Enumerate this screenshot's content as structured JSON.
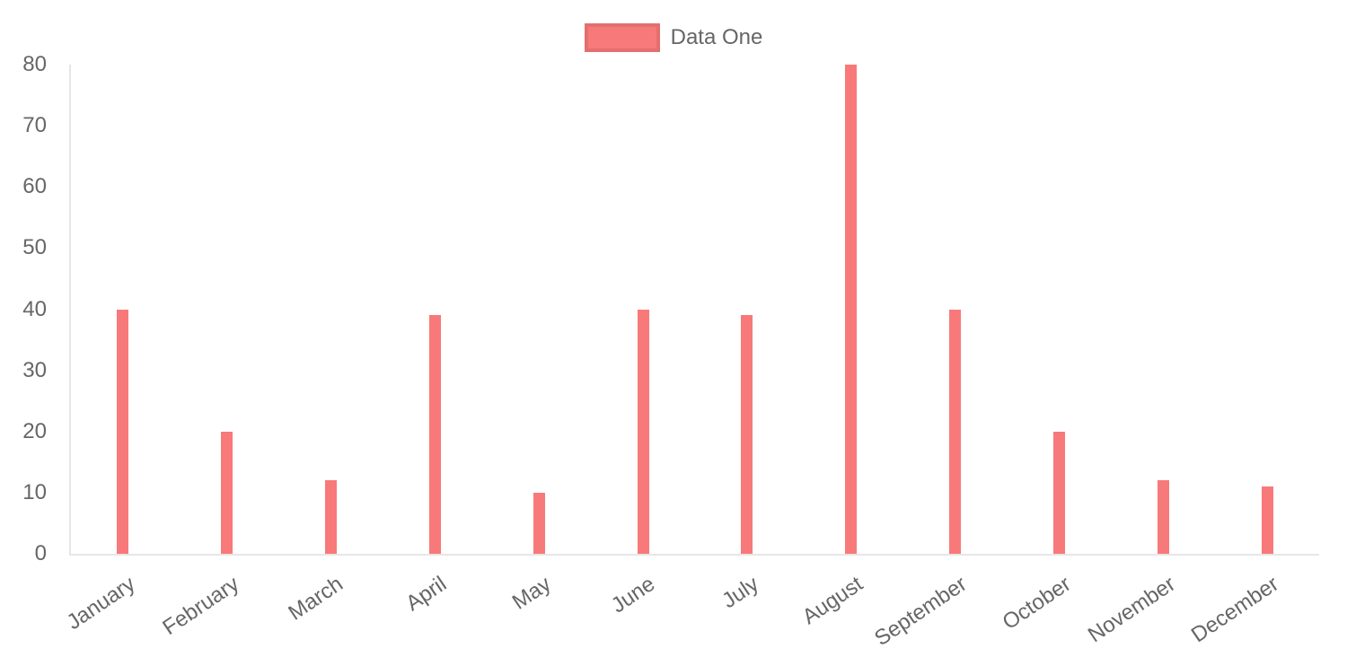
{
  "chart_data": {
    "type": "bar",
    "title": "",
    "xlabel": "",
    "ylabel": "",
    "categories": [
      "January",
      "February",
      "March",
      "April",
      "May",
      "June",
      "July",
      "August",
      "September",
      "October",
      "November",
      "December"
    ],
    "series": [
      {
        "name": "Data One",
        "color": "#f87979",
        "values": [
          40,
          20,
          12,
          39,
          10,
          40,
          39,
          80,
          40,
          20,
          12,
          11
        ]
      }
    ],
    "ylim": [
      0,
      80
    ],
    "yticks": [
      0,
      10,
      20,
      30,
      40,
      50,
      60,
      70,
      80
    ],
    "grid": false,
    "legend_position": "top-center",
    "x_label_rotation_deg": -34,
    "colors": {
      "bar": "#f87979",
      "tick_text": "#666666",
      "axis_line": "#e6e6e6",
      "legend_box_border": "rgba(0,0,0,0.08)"
    }
  }
}
